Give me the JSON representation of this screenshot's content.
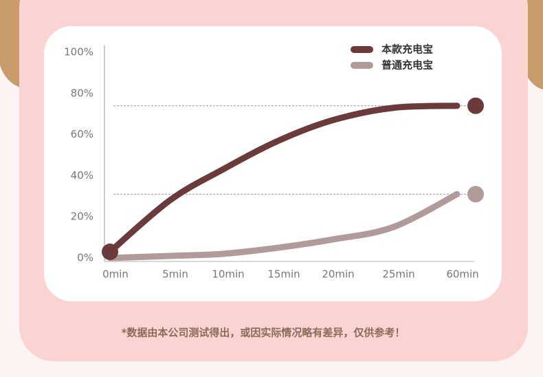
{
  "chart_data": {
    "type": "line",
    "categories": [
      "0min",
      "5min",
      "10min",
      "15min",
      "20min",
      "25min",
      "60min"
    ],
    "series": [
      {
        "name": "本款充电宝",
        "color": "#6b3a3a",
        "values": [
          3,
          28,
          43,
          57,
          67,
          73,
          74
        ]
      },
      {
        "name": "普通充电宝",
        "color": "#b09a9a",
        "values": [
          0,
          1,
          2,
          5,
          9,
          15,
          31
        ]
      }
    ],
    "ylim": [
      0,
      100
    ],
    "yticks": [
      {
        "value": 0,
        "label": "0%"
      },
      {
        "value": 20,
        "label": "20%"
      },
      {
        "value": 40,
        "label": "40%"
      },
      {
        "value": 60,
        "label": "60%"
      },
      {
        "value": 80,
        "label": "80%"
      },
      {
        "value": 100,
        "label": "100%"
      }
    ],
    "note": "*数据由本公司测试得出，或因实际情况略有差异，仅供参考！"
  }
}
